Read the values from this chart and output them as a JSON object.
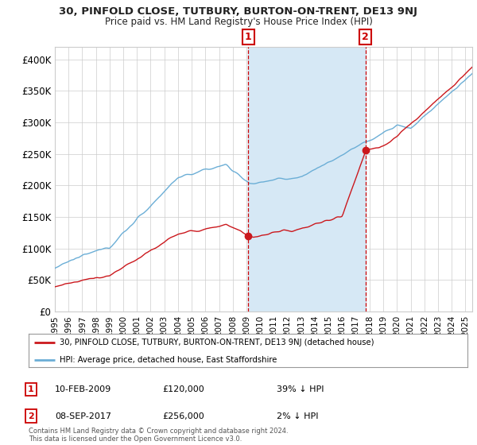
{
  "title1": "30, PINFOLD CLOSE, TUTBURY, BURTON-ON-TRENT, DE13 9NJ",
  "title2": "Price paid vs. HM Land Registry's House Price Index (HPI)",
  "ylim": [
    0,
    420000
  ],
  "yticks": [
    0,
    50000,
    100000,
    150000,
    200000,
    250000,
    300000,
    350000,
    400000
  ],
  "ytick_labels": [
    "£0",
    "£50K",
    "£100K",
    "£150K",
    "£200K",
    "£250K",
    "£300K",
    "£350K",
    "£400K"
  ],
  "xlim_start": 1995.0,
  "xlim_end": 2025.5,
  "hpi_color": "#6baed6",
  "price_color": "#cb181d",
  "shade_color": "#d6e8f5",
  "marker1_date": 2009.12,
  "marker1_price": 120000,
  "marker2_date": 2017.69,
  "marker2_price": 256000,
  "legend1_text": "30, PINFOLD CLOSE, TUTBURY, BURTON-ON-TRENT, DE13 9NJ (detached house)",
  "legend2_text": "HPI: Average price, detached house, East Staffordshire",
  "annotation1_label": "1",
  "annotation1_date": "10-FEB-2009",
  "annotation1_price": "£120,000",
  "annotation1_rel": "39% ↓ HPI",
  "annotation2_label": "2",
  "annotation2_date": "08-SEP-2017",
  "annotation2_price": "£256,000",
  "annotation2_rel": "2% ↓ HPI",
  "footnote": "Contains HM Land Registry data © Crown copyright and database right 2024.\nThis data is licensed under the Open Government Licence v3.0.",
  "vline_color": "#cc0000",
  "background_color": "#ffffff",
  "grid_color": "#cccccc"
}
